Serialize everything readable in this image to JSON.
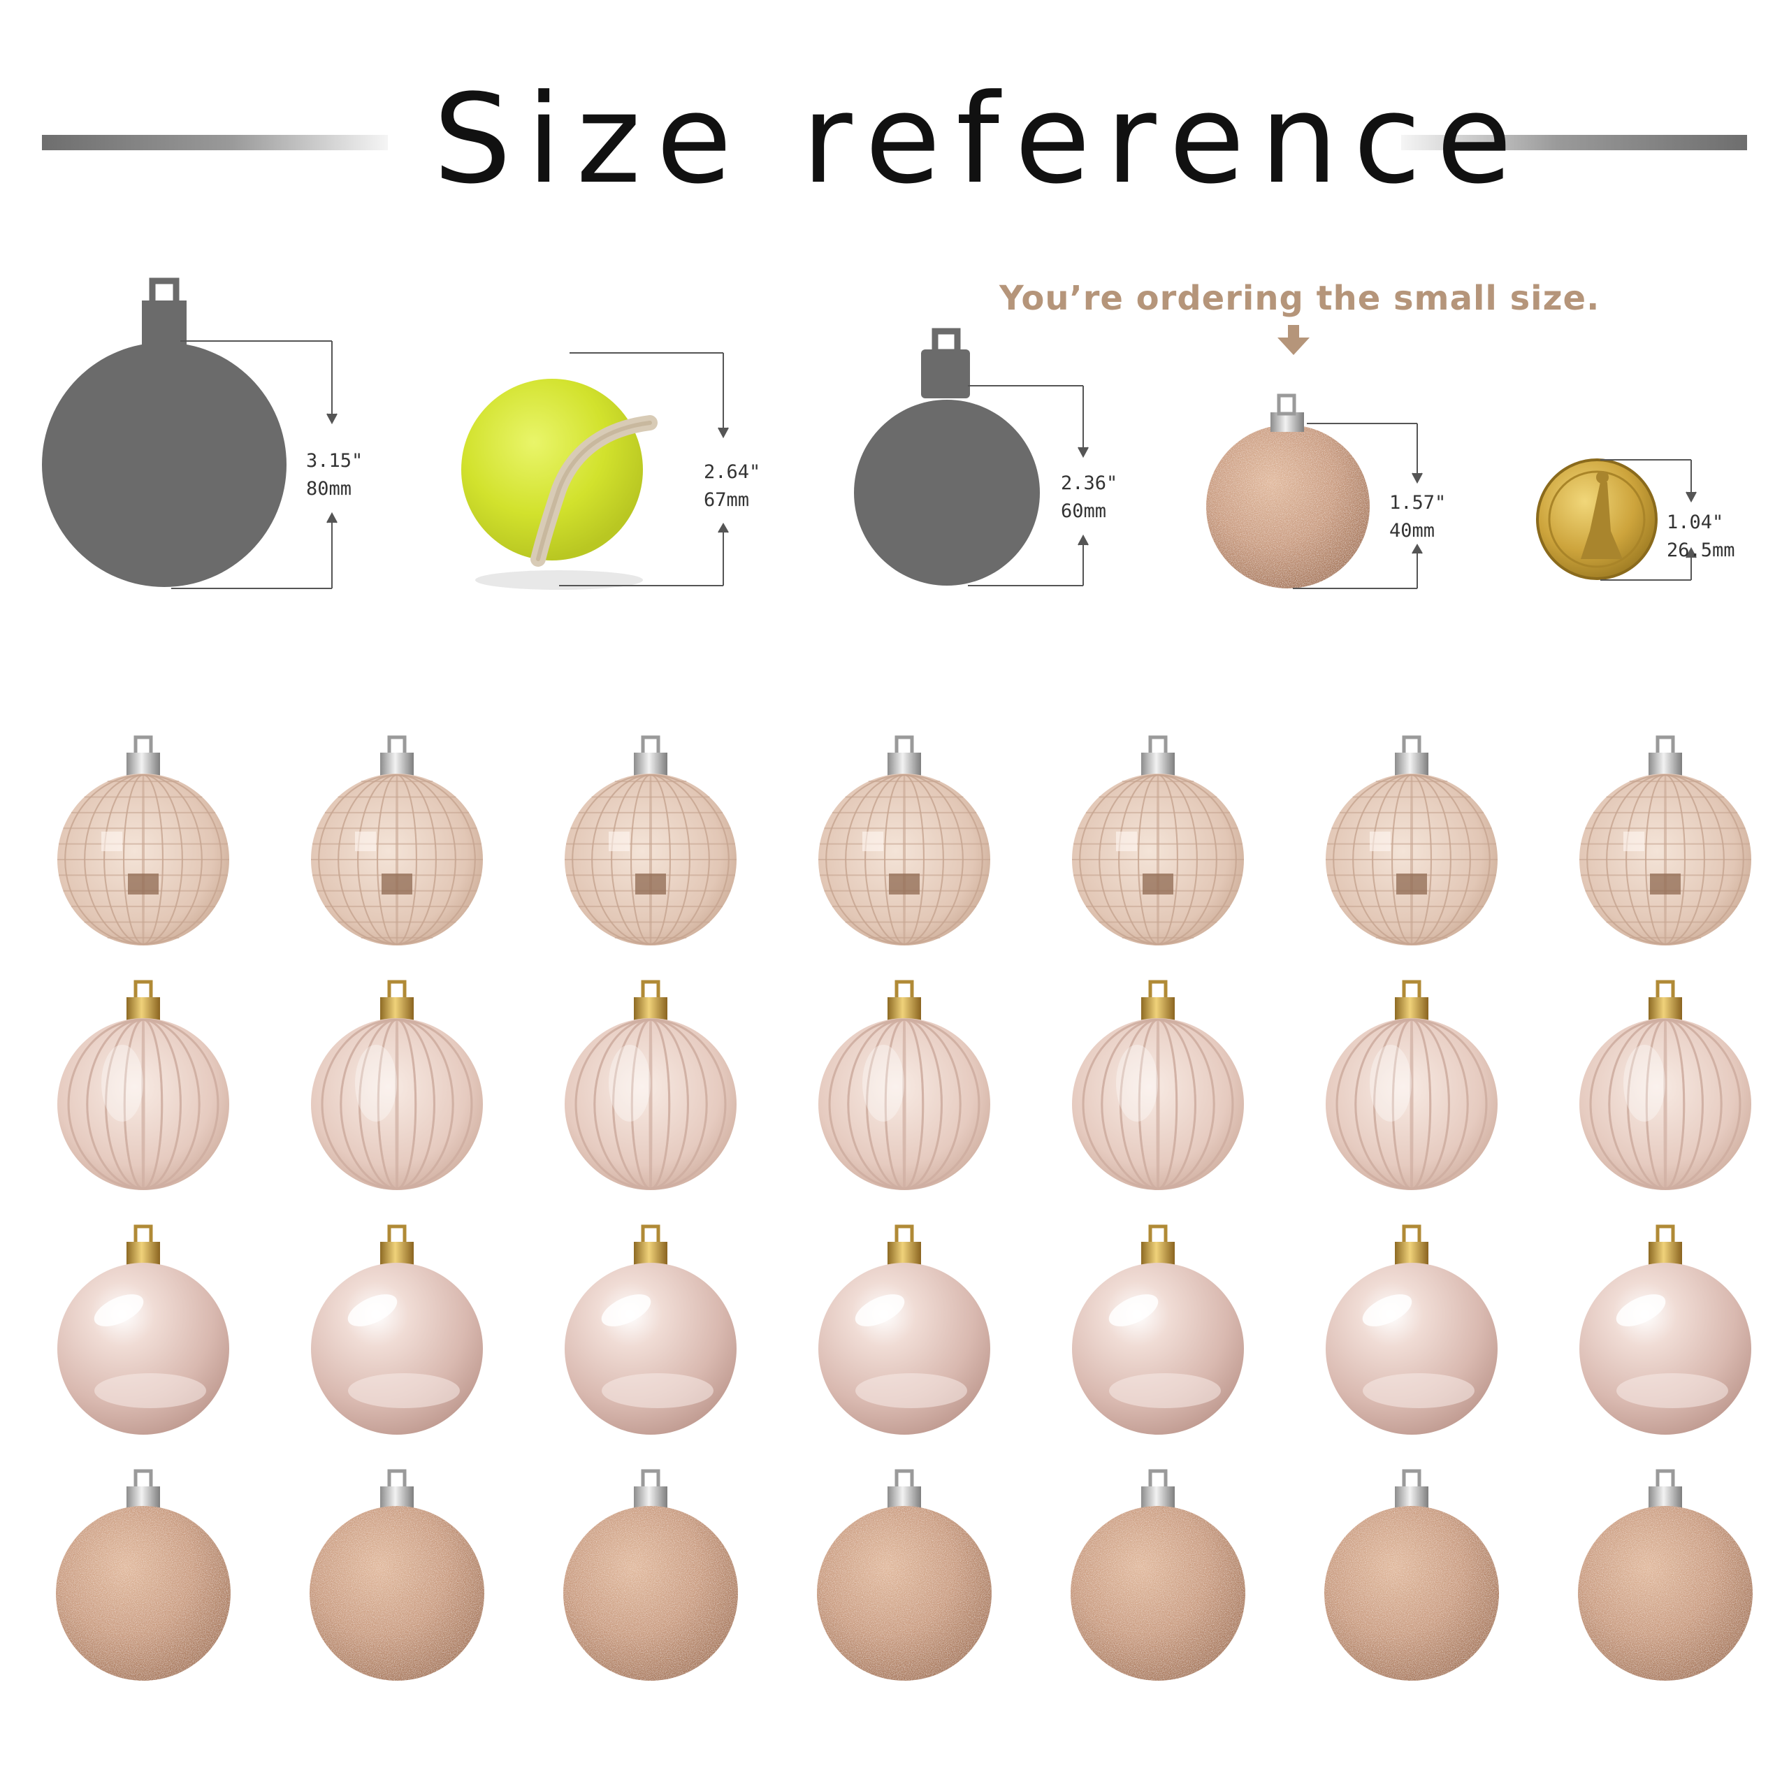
{
  "header": {
    "title": "Size reference"
  },
  "callout": {
    "text": "You’re ordering the small size.",
    "color": "#b5957a"
  },
  "comparisons": [
    {
      "name": "large-ornament",
      "inches": "3.15\"",
      "mm": "80mm",
      "fill": "#6b6b6b"
    },
    {
      "name": "tennis-ball",
      "inches": "2.64\"",
      "mm": "67mm",
      "fill": "#d4e632"
    },
    {
      "name": "medium-ornament",
      "inches": "2.36\"",
      "mm": "60mm",
      "fill": "#6b6b6b"
    },
    {
      "name": "small-ornament",
      "inches": "1.57\"",
      "mm": "40mm",
      "fill": "#c79d82"
    },
    {
      "name": "dollar-coin",
      "inches": "1.04\"",
      "mm": "26.5mm",
      "fill": "#c9a235"
    }
  ],
  "ornament_rows": [
    {
      "finish": "mirrored-disco",
      "count": 7,
      "base": "#e8d3c6",
      "cap": "silver"
    },
    {
      "finish": "ribbed-matte",
      "count": 7,
      "base": "#ecd4ca",
      "cap": "gold"
    },
    {
      "finish": "pearl-shiny",
      "count": 7,
      "base": "#e6cbc3",
      "cap": "gold"
    },
    {
      "finish": "glitter",
      "count": 7,
      "base": "#cc9f84",
      "cap": "silver"
    }
  ],
  "colors": {
    "silhouette": "#6b6b6b",
    "rule": "#7a7a7a",
    "callout_arrow": "#b5957a"
  }
}
